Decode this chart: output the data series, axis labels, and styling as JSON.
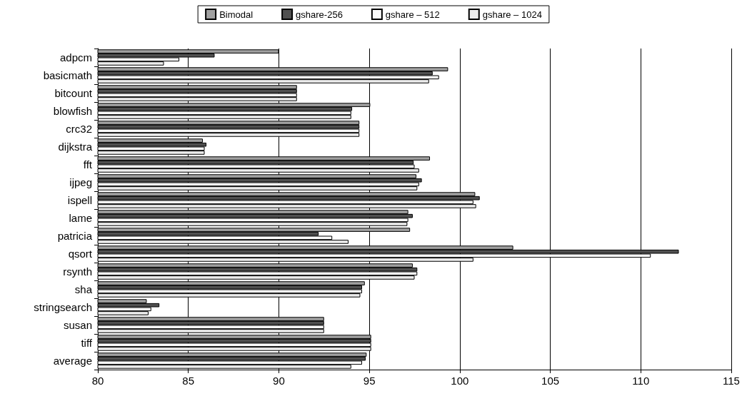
{
  "chart_data": {
    "type": "bar",
    "orientation": "horizontal",
    "categories": [
      "adpcm",
      "basicmath",
      "bitcount",
      "blowfish",
      "crc32",
      "dijkstra",
      "fft",
      "ijpeg",
      "ispell",
      "lame",
      "patricia",
      "qsort",
      "rsynth",
      "sha",
      "stringsearch",
      "susan",
      "tiff",
      "average"
    ],
    "series": [
      {
        "name": "Bimodal",
        "color": "#a0a0a0",
        "values": [
          90.0,
          99.35,
          91.0,
          95.05,
          94.45,
          85.8,
          98.35,
          97.6,
          100.85,
          97.15,
          97.25,
          102.95,
          97.4,
          94.75,
          82.7,
          92.5,
          95.1,
          94.85
        ]
      },
      {
        "name": "gshare-256",
        "color": "#505050",
        "values": [
          86.45,
          98.5,
          91.0,
          94.05,
          94.45,
          86.0,
          97.45,
          97.9,
          101.1,
          97.4,
          92.2,
          112.1,
          97.65,
          94.6,
          83.4,
          92.5,
          95.1,
          94.8
        ]
      },
      {
        "name": "gshare – 512",
        "color": "#fafafa",
        "values": [
          84.5,
          98.85,
          91.0,
          94.0,
          94.45,
          85.9,
          97.5,
          97.75,
          100.75,
          97.15,
          92.95,
          110.55,
          97.65,
          94.6,
          82.95,
          92.5,
          95.1,
          94.6
        ]
      },
      {
        "name": "gshare – 1024",
        "color": "#ececec",
        "values": [
          83.65,
          98.3,
          91.0,
          94.0,
          94.45,
          85.9,
          97.75,
          97.65,
          100.9,
          97.1,
          93.85,
          100.75,
          97.5,
          94.5,
          82.8,
          92.5,
          95.1,
          94.0
        ]
      }
    ],
    "xlim": [
      80,
      115
    ],
    "xticks": [
      80,
      85,
      90,
      95,
      100,
      105,
      110,
      115
    ],
    "grid": "x",
    "legend": "top"
  }
}
